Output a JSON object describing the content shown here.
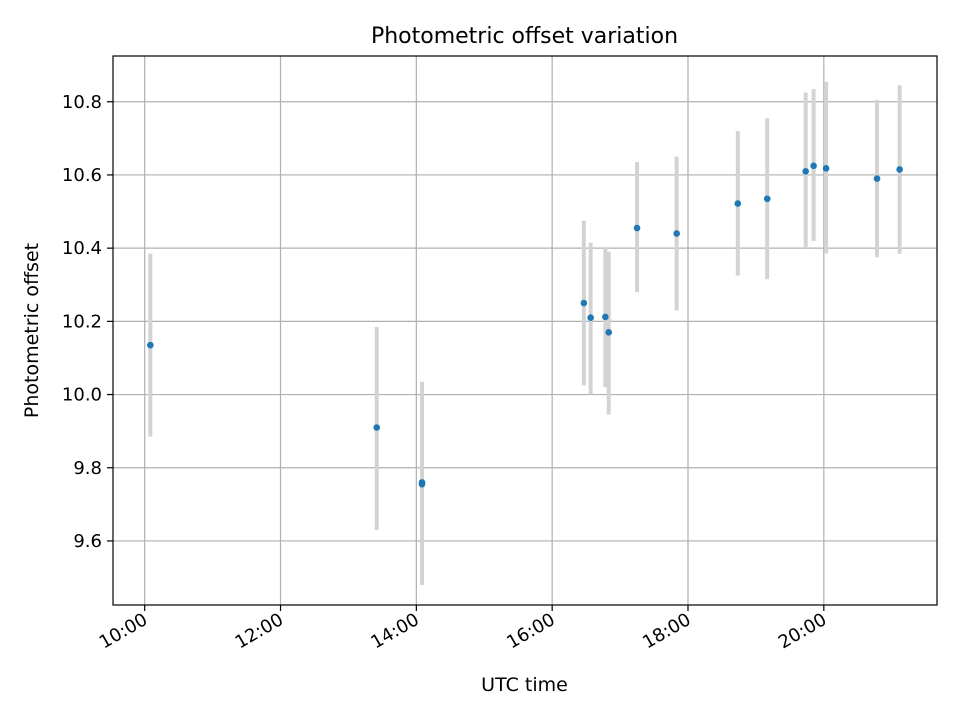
{
  "chart_data": {
    "type": "scatter",
    "title": "Photometric offset variation",
    "xlabel": "UTC time",
    "ylabel": "Photometric offset",
    "x_ticks": [
      "10:00",
      "12:00",
      "14:00",
      "16:00",
      "18:00",
      "20:00"
    ],
    "x_tick_hours": [
      10,
      12,
      14,
      16,
      18,
      20
    ],
    "y_ticks": [
      "9.6",
      "9.8",
      "10.0",
      "10.2",
      "10.4",
      "10.6",
      "10.8"
    ],
    "y_tick_values": [
      9.6,
      9.8,
      10.0,
      10.2,
      10.4,
      10.6,
      10.8
    ],
    "xlim": [
      "09:32",
      "21:40"
    ],
    "ylim": [
      9.425,
      10.925
    ],
    "grid": true,
    "marker_color": "#1f77b4",
    "errorbar_color": "#d3d3d3",
    "points": [
      {
        "x": "10:05",
        "y": 10.135,
        "yerr_low": 9.885,
        "yerr_high": 10.385
      },
      {
        "x": "13:25",
        "y": 9.91,
        "yerr_low": 9.63,
        "yerr_high": 10.185
      },
      {
        "x": "14:05",
        "y": 9.76,
        "yerr_low": 9.48,
        "yerr_high": 10.035
      },
      {
        "x": "14:05",
        "y": 9.755,
        "yerr_low": 9.48,
        "yerr_high": 10.03
      },
      {
        "x": "16:28",
        "y": 10.25,
        "yerr_low": 10.025,
        "yerr_high": 10.475
      },
      {
        "x": "16:34",
        "y": 10.21,
        "yerr_low": 10.0,
        "yerr_high": 10.415
      },
      {
        "x": "16:47",
        "y": 10.212,
        "yerr_low": 10.02,
        "yerr_high": 10.4
      },
      {
        "x": "16:50",
        "y": 10.17,
        "yerr_low": 9.945,
        "yerr_high": 10.39
      },
      {
        "x": "17:15",
        "y": 10.455,
        "yerr_low": 10.28,
        "yerr_high": 10.635
      },
      {
        "x": "17:50",
        "y": 10.44,
        "yerr_low": 10.23,
        "yerr_high": 10.65
      },
      {
        "x": "18:44",
        "y": 10.522,
        "yerr_low": 10.325,
        "yerr_high": 10.72
      },
      {
        "x": "19:10",
        "y": 10.535,
        "yerr_low": 10.315,
        "yerr_high": 10.755
      },
      {
        "x": "19:44",
        "y": 10.61,
        "yerr_low": 10.4,
        "yerr_high": 10.825
      },
      {
        "x": "19:51",
        "y": 10.625,
        "yerr_low": 10.42,
        "yerr_high": 10.835
      },
      {
        "x": "20:02",
        "y": 10.618,
        "yerr_low": 10.385,
        "yerr_high": 10.855
      },
      {
        "x": "20:47",
        "y": 10.59,
        "yerr_low": 10.375,
        "yerr_high": 10.805
      },
      {
        "x": "21:07",
        "y": 10.615,
        "yerr_low": 10.385,
        "yerr_high": 10.845
      }
    ]
  }
}
